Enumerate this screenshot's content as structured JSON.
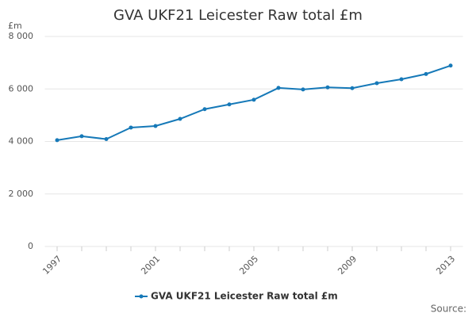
{
  "chart_data": {
    "type": "line",
    "title": "GVA UKF21 Leicester Raw total £m",
    "y_label": "£m",
    "source": "Source:",
    "categories": [
      "1997",
      null,
      null,
      null,
      "2001",
      null,
      null,
      null,
      "2005",
      null,
      null,
      null,
      "2009",
      null,
      null,
      null,
      "2013"
    ],
    "series": [
      {
        "name": "GVA UKF21 Leicester Raw total £m",
        "color": "#1679b8",
        "values": [
          4050,
          4200,
          4090,
          4530,
          4590,
          4860,
          5230,
          5410,
          5590,
          6040,
          5980,
          6060,
          6030,
          6220,
          6370,
          6570,
          6890
        ]
      }
    ],
    "ylim": [
      0,
      8000
    ],
    "yticks": [
      0,
      {
        "value": 2000,
        "label": "2 000"
      },
      {
        "value": 4000,
        "label": "4 000"
      },
      {
        "value": 6000,
        "label": "6 000"
      },
      {
        "value": 8000,
        "label": "8 000"
      }
    ],
    "grid": true,
    "legend": "bottom"
  }
}
